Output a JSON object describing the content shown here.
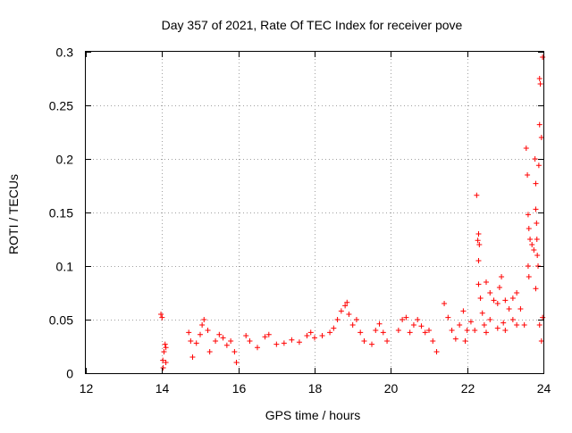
{
  "chart_data": {
    "type": "scatter",
    "title": "Day 357 of 2021, Rate Of TEC Index for receiver pove",
    "xlabel": "GPS time / hours",
    "ylabel": "ROTI / TECUs",
    "xlim": [
      12,
      24
    ],
    "ylim": [
      0,
      0.3
    ],
    "x_ticks": [
      "12",
      "14",
      "16",
      "18",
      "20",
      "22",
      "24"
    ],
    "y_ticks": [
      "0",
      "0.05",
      "0.1",
      "0.15",
      "0.2",
      "0.25",
      "0.3"
    ],
    "grid": true,
    "marker": "plus",
    "color": "#ff0000",
    "series": [
      {
        "points": [
          [
            13.97,
            0.055
          ],
          [
            14.0,
            0.052
          ],
          [
            14.02,
            0.012
          ],
          [
            14.05,
            0.02
          ],
          [
            14.08,
            0.027
          ],
          [
            14.1,
            0.01
          ],
          [
            14.03,
            0.005
          ],
          [
            14.1,
            0.024
          ],
          [
            14.7,
            0.038
          ],
          [
            14.75,
            0.03
          ],
          [
            14.8,
            0.015
          ],
          [
            14.9,
            0.028
          ],
          [
            15.0,
            0.036
          ],
          [
            15.05,
            0.045
          ],
          [
            15.1,
            0.05
          ],
          [
            15.2,
            0.04
          ],
          [
            15.25,
            0.02
          ],
          [
            15.4,
            0.03
          ],
          [
            15.5,
            0.036
          ],
          [
            15.6,
            0.033
          ],
          [
            15.7,
            0.026
          ],
          [
            15.8,
            0.03
          ],
          [
            15.9,
            0.02
          ],
          [
            15.95,
            0.01
          ],
          [
            16.2,
            0.035
          ],
          [
            16.3,
            0.03
          ],
          [
            16.5,
            0.024
          ],
          [
            16.7,
            0.034
          ],
          [
            16.8,
            0.036
          ],
          [
            17.0,
            0.027
          ],
          [
            17.2,
            0.028
          ],
          [
            17.4,
            0.031
          ],
          [
            17.6,
            0.029
          ],
          [
            17.8,
            0.035
          ],
          [
            17.9,
            0.038
          ],
          [
            18.0,
            0.033
          ],
          [
            18.2,
            0.035
          ],
          [
            18.4,
            0.038
          ],
          [
            18.5,
            0.042
          ],
          [
            18.6,
            0.05
          ],
          [
            18.7,
            0.058
          ],
          [
            18.8,
            0.063
          ],
          [
            18.85,
            0.066
          ],
          [
            18.9,
            0.055
          ],
          [
            19.0,
            0.045
          ],
          [
            19.1,
            0.05
          ],
          [
            19.2,
            0.038
          ],
          [
            19.3,
            0.03
          ],
          [
            19.5,
            0.027
          ],
          [
            19.6,
            0.04
          ],
          [
            19.7,
            0.046
          ],
          [
            19.8,
            0.038
          ],
          [
            19.9,
            0.03
          ],
          [
            20.2,
            0.04
          ],
          [
            20.3,
            0.05
          ],
          [
            20.4,
            0.052
          ],
          [
            20.5,
            0.038
          ],
          [
            20.6,
            0.045
          ],
          [
            20.7,
            0.05
          ],
          [
            20.8,
            0.044
          ],
          [
            20.9,
            0.038
          ],
          [
            21.0,
            0.04
          ],
          [
            21.1,
            0.03
          ],
          [
            21.2,
            0.02
          ],
          [
            21.4,
            0.065
          ],
          [
            21.5,
            0.052
          ],
          [
            21.6,
            0.04
          ],
          [
            21.7,
            0.032
          ],
          [
            21.8,
            0.045
          ],
          [
            21.9,
            0.058
          ],
          [
            22.0,
            0.04
          ],
          [
            22.1,
            0.048
          ],
          [
            22.25,
            0.166
          ],
          [
            22.3,
            0.13
          ],
          [
            22.28,
            0.124
          ],
          [
            22.32,
            0.12
          ],
          [
            22.3,
            0.105
          ],
          [
            22.3,
            0.083
          ],
          [
            22.35,
            0.07
          ],
          [
            22.4,
            0.056
          ],
          [
            22.5,
            0.085
          ],
          [
            22.6,
            0.075
          ],
          [
            22.7,
            0.068
          ],
          [
            22.8,
            0.065
          ],
          [
            22.85,
            0.08
          ],
          [
            22.9,
            0.09
          ],
          [
            23.0,
            0.068
          ],
          [
            23.1,
            0.06
          ],
          [
            23.2,
            0.07
          ],
          [
            23.3,
            0.075
          ],
          [
            23.4,
            0.06
          ],
          [
            23.5,
            0.045
          ],
          [
            23.55,
            0.21
          ],
          [
            23.58,
            0.185
          ],
          [
            23.6,
            0.148
          ],
          [
            23.62,
            0.135
          ],
          [
            23.65,
            0.125
          ],
          [
            23.6,
            0.1
          ],
          [
            23.62,
            0.09
          ],
          [
            23.7,
            0.12
          ],
          [
            23.75,
            0.115
          ],
          [
            23.78,
            0.2
          ],
          [
            23.8,
            0.177
          ],
          [
            23.8,
            0.153
          ],
          [
            23.82,
            0.14
          ],
          [
            23.83,
            0.125
          ],
          [
            23.84,
            0.11
          ],
          [
            23.86,
            0.1
          ],
          [
            23.8,
            0.079
          ],
          [
            23.88,
            0.194
          ],
          [
            23.9,
            0.232
          ],
          [
            23.9,
            0.275
          ],
          [
            23.92,
            0.27
          ],
          [
            23.95,
            0.22
          ],
          [
            23.98,
            0.295
          ],
          [
            23.98,
            0.052
          ],
          [
            23.9,
            0.045
          ],
          [
            23.95,
            0.03
          ],
          [
            23.0,
            0.04
          ],
          [
            22.95,
            0.047
          ],
          [
            22.8,
            0.042
          ],
          [
            22.6,
            0.05
          ],
          [
            22.5,
            0.038
          ],
          [
            22.45,
            0.045
          ],
          [
            22.2,
            0.04
          ],
          [
            21.95,
            0.03
          ],
          [
            23.3,
            0.045
          ],
          [
            23.2,
            0.05
          ]
        ]
      }
    ]
  }
}
